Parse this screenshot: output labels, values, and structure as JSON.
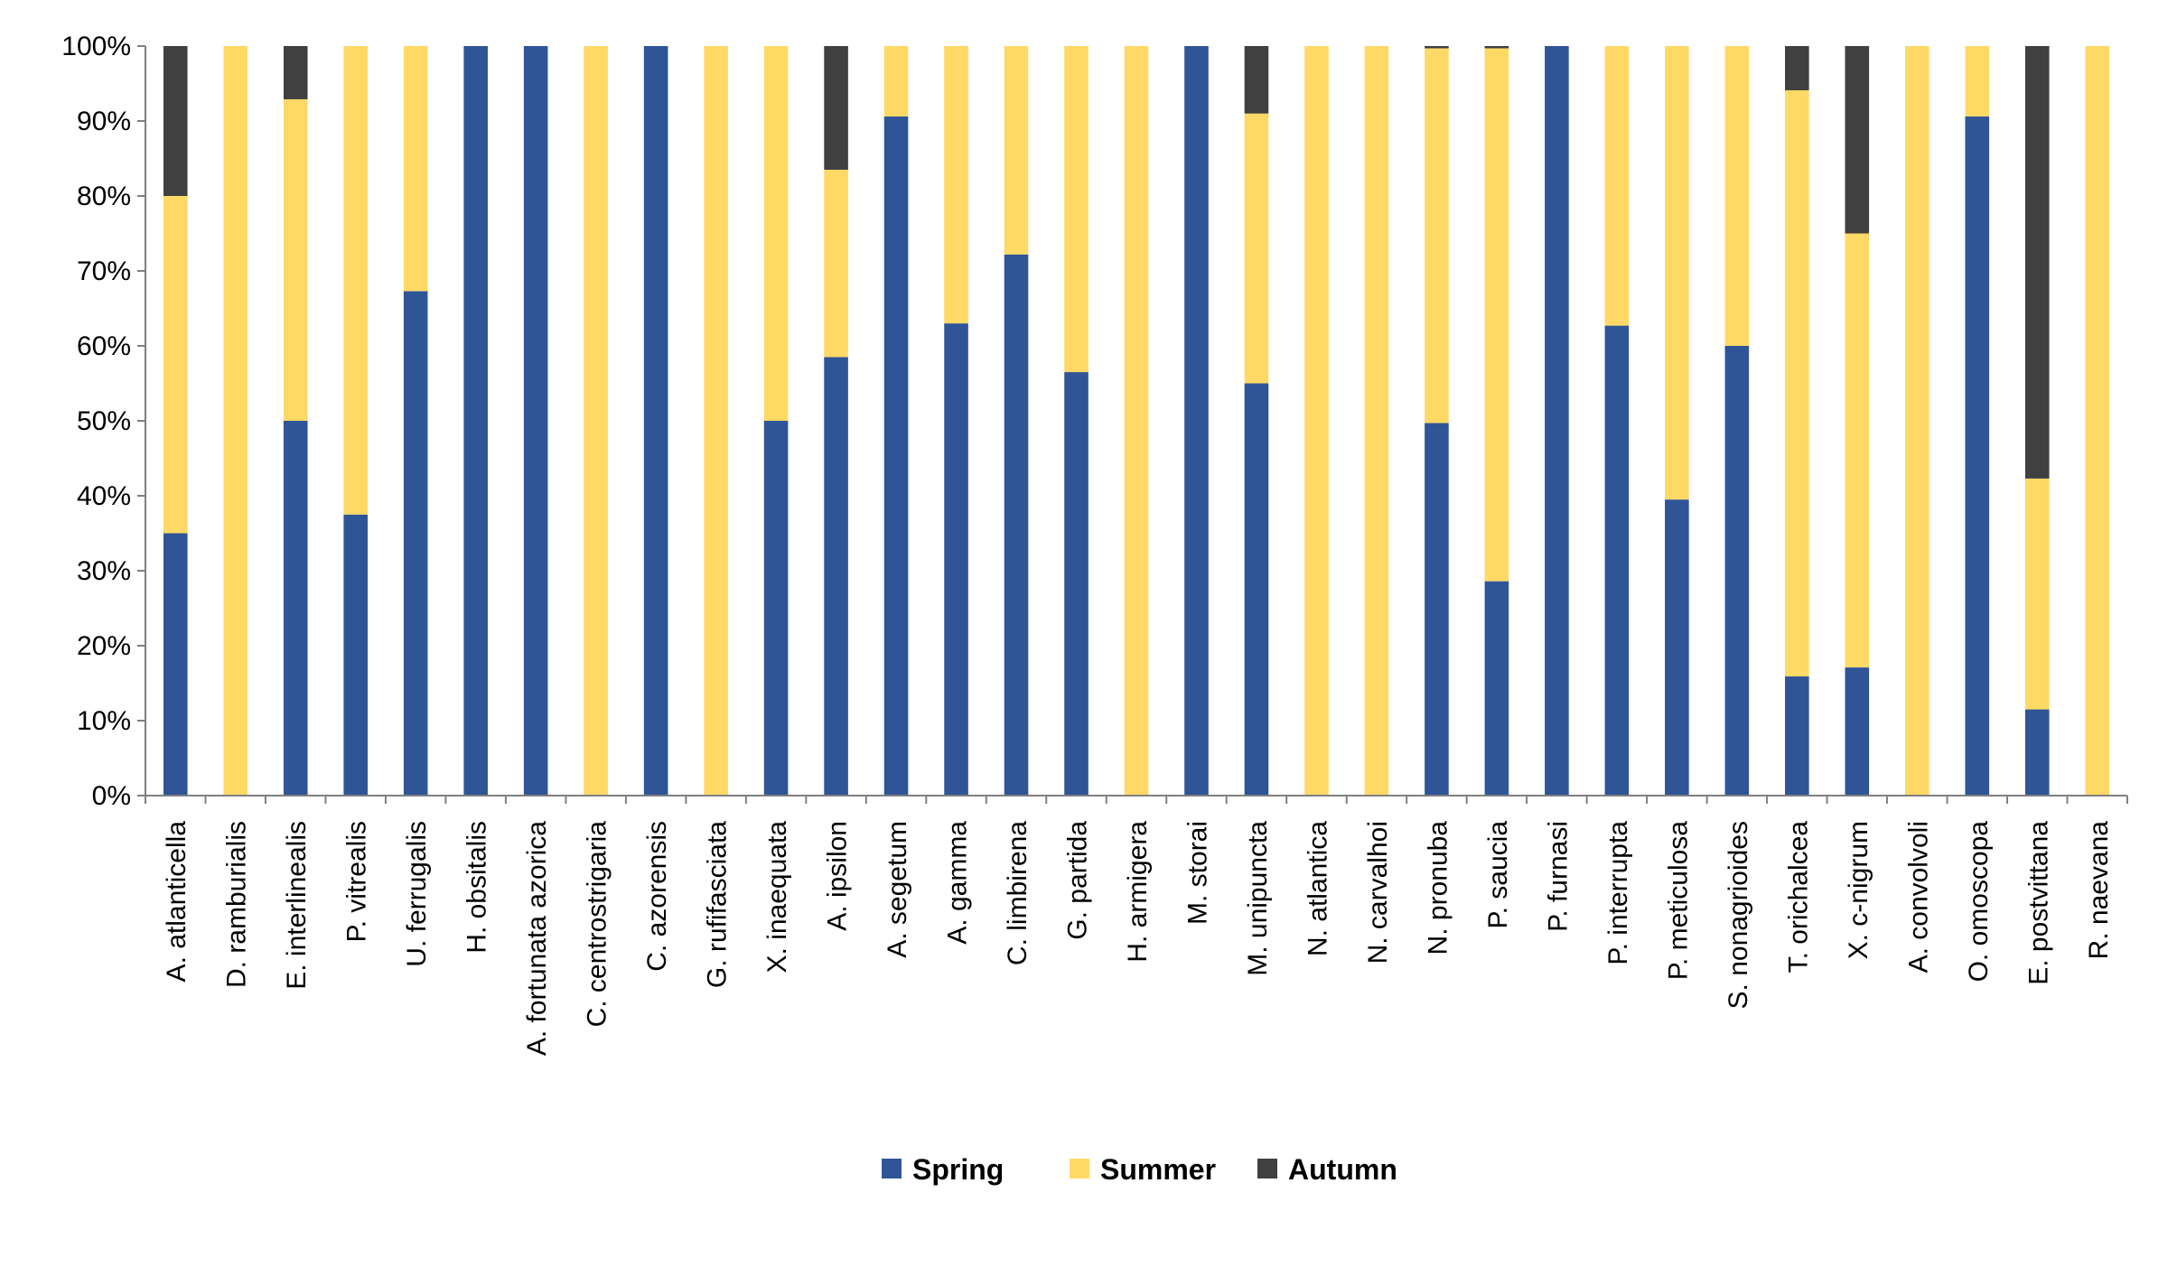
{
  "chart_data": {
    "type": "bar",
    "stacked": "percent",
    "ylim": [
      0,
      100
    ],
    "y_ticks": [
      "0%",
      "10%",
      "20%",
      "30%",
      "40%",
      "50%",
      "60%",
      "70%",
      "80%",
      "90%",
      "100%"
    ],
    "grid": false,
    "legend_position": "bottom",
    "categories": [
      "A. atlanticella",
      "D. ramburialis",
      "E. interlinealis",
      "P. vitrealis",
      "U. ferrugalis",
      "H. obsitalis",
      "A. fortunata azorica",
      "C. centrostrigaria",
      "C. azorensis",
      "G. rufifasciata",
      "X. inaequata",
      "A. ipsilon",
      "A. segetum",
      "A. gamma",
      "C. limbirena",
      "G. partida",
      "H. armigera",
      "M. storai",
      "M. unipuncta",
      "N. atlantica",
      "N. carvalhoi",
      "N. pronuba",
      "P. saucia",
      "P. furnasi",
      "P. interrupta",
      "P. meticulosa",
      "S. nonagrioides",
      "T. orichalcea",
      "X. c-nigrum",
      "A. convolvoli",
      "O. omoscopa",
      "E. postvittana",
      "R. naevana"
    ],
    "series": [
      {
        "name": "Spring",
        "color": "#2F5597",
        "values": [
          35,
          0,
          50,
          37.5,
          67.3,
          100,
          100,
          0,
          100,
          0,
          50,
          58.5,
          90.6,
          63,
          72.2,
          56.5,
          0,
          100,
          55,
          0,
          0,
          49.7,
          28.6,
          100,
          62.7,
          39.5,
          60,
          15.9,
          17.1,
          0,
          90.6,
          11.5,
          0
        ]
      },
      {
        "name": "Summer",
        "color": "#FFD966",
        "values": [
          45,
          100,
          42.9,
          62.5,
          32.7,
          0,
          0,
          100,
          0,
          100,
          50,
          25,
          9.4,
          37,
          27.8,
          43.5,
          100,
          0,
          36,
          100,
          100,
          50,
          71.1,
          0,
          37.3,
          60.5,
          40,
          78.2,
          57.9,
          100,
          9.4,
          30.8,
          100
        ]
      },
      {
        "name": "Autumn",
        "color": "#404040",
        "values": [
          20,
          0,
          7.1,
          0,
          0,
          0,
          0,
          0,
          0,
          0,
          0,
          16.5,
          0,
          0,
          0,
          0,
          0,
          0,
          9,
          0,
          0,
          0.3,
          0.3,
          0,
          0,
          0,
          0,
          5.9,
          25,
          0,
          0,
          57.7,
          0
        ]
      }
    ]
  }
}
